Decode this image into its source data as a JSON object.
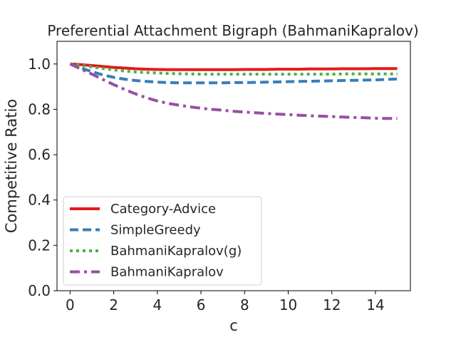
{
  "chart_data": {
    "type": "line",
    "title": "Preferential Attachment Bigraph (BahmaniKapralov)",
    "xlabel": "c",
    "ylabel": "Competitive Ratio",
    "xlim": [
      -0.6,
      15.6
    ],
    "ylim": [
      0.0,
      1.1
    ],
    "xticks": [
      0,
      2,
      4,
      6,
      8,
      10,
      12,
      14
    ],
    "yticks": [
      0.0,
      0.2,
      0.4,
      0.6,
      0.8,
      1.0
    ],
    "grid": false,
    "legend_position": "lower-left",
    "x": [
      0,
      0.5,
      1,
      1.5,
      2,
      2.5,
      3,
      3.5,
      4,
      4.5,
      5,
      5.5,
      6,
      6.5,
      7,
      7.5,
      8,
      8.5,
      9,
      9.5,
      10,
      10.5,
      11,
      11.5,
      12,
      12.5,
      13,
      13.5,
      14,
      14.5,
      15
    ],
    "series": [
      {
        "name": "Category-Advice",
        "color": "#e41a1c",
        "dash": "solid",
        "values": [
          1.0,
          0.997,
          0.993,
          0.989,
          0.985,
          0.982,
          0.979,
          0.977,
          0.976,
          0.975,
          0.975,
          0.975,
          0.975,
          0.975,
          0.975,
          0.975,
          0.976,
          0.976,
          0.976,
          0.977,
          0.977,
          0.977,
          0.978,
          0.978,
          0.978,
          0.979,
          0.979,
          0.979,
          0.98,
          0.98,
          0.98
        ]
      },
      {
        "name": "SimpleGreedy",
        "color": "#377eb8",
        "dash": "dashed",
        "values": [
          1.0,
          0.982,
          0.966,
          0.952,
          0.941,
          0.933,
          0.927,
          0.923,
          0.92,
          0.918,
          0.917,
          0.917,
          0.917,
          0.917,
          0.917,
          0.918,
          0.918,
          0.919,
          0.92,
          0.921,
          0.922,
          0.923,
          0.924,
          0.925,
          0.926,
          0.927,
          0.928,
          0.929,
          0.93,
          0.932,
          0.934
        ]
      },
      {
        "name": "BahmaniKapralov(g)",
        "color": "#4daf4a",
        "dash": "dotted",
        "values": [
          1.0,
          0.994,
          0.987,
          0.98,
          0.974,
          0.969,
          0.965,
          0.962,
          0.96,
          0.958,
          0.957,
          0.956,
          0.955,
          0.955,
          0.955,
          0.955,
          0.955,
          0.955,
          0.955,
          0.955,
          0.955,
          0.955,
          0.955,
          0.955,
          0.955,
          0.956,
          0.956,
          0.956,
          0.956,
          0.956,
          0.956
        ]
      },
      {
        "name": "BahmaniKapralov",
        "color": "#984ea3",
        "dash": "dashdot",
        "values": [
          1.0,
          0.978,
          0.955,
          0.932,
          0.909,
          0.888,
          0.868,
          0.851,
          0.837,
          0.826,
          0.818,
          0.811,
          0.805,
          0.8,
          0.796,
          0.791,
          0.788,
          0.785,
          0.782,
          0.779,
          0.777,
          0.774,
          0.772,
          0.77,
          0.768,
          0.766,
          0.764,
          0.763,
          0.761,
          0.76,
          0.76
        ]
      }
    ]
  }
}
